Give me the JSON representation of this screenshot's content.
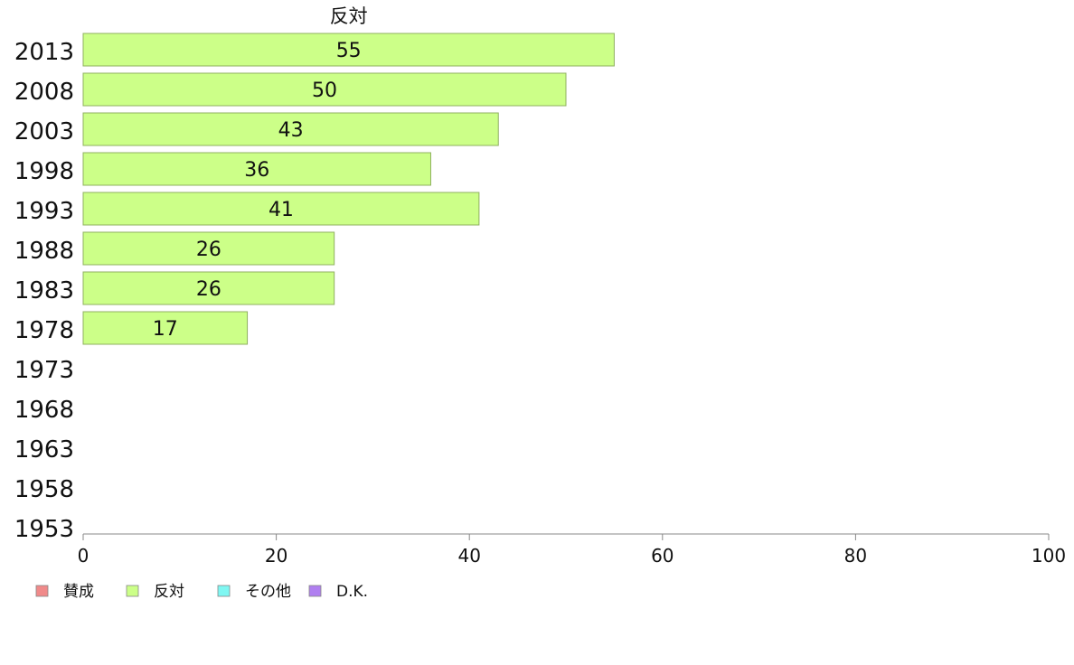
{
  "chart_data": {
    "type": "bar",
    "orientation": "horizontal",
    "title": "反対",
    "categories": [
      "2013",
      "2008",
      "2003",
      "1998",
      "1993",
      "1988",
      "1983",
      "1978",
      "1973",
      "1968",
      "1963",
      "1958",
      "1953"
    ],
    "series": [
      {
        "name": "反対",
        "color": "#ccff88",
        "values": [
          55,
          50,
          43,
          36,
          41,
          26,
          26,
          17,
          null,
          null,
          null,
          null,
          null
        ],
        "labels": [
          "55",
          "50",
          "43",
          "36",
          "41",
          "26",
          "26",
          "17",
          "",
          "",
          "",
          "",
          ""
        ]
      }
    ],
    "xlim": [
      0,
      100
    ],
    "xticks": [
      "0",
      "20",
      "40",
      "60",
      "80",
      "100"
    ],
    "grid": false,
    "legend": {
      "placement": "bottom-left",
      "items": [
        {
          "label": "賛成",
          "color": "#f08a8a"
        },
        {
          "label": "反対",
          "color": "#ccff88"
        },
        {
          "label": "その他",
          "color": "#7ff7f2"
        },
        {
          "label": "D.K.",
          "color": "#b07ff0"
        }
      ]
    }
  }
}
